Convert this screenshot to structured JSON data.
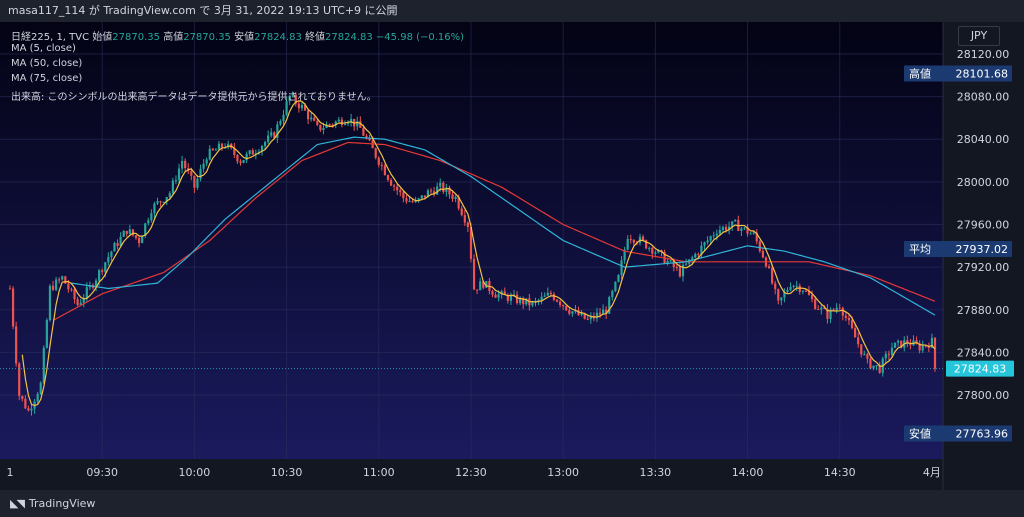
{
  "header": {
    "title": "masa117_114 が TradingView.com で 3月 31, 2022 19:13 UTC+9 に公開"
  },
  "legend": {
    "symbol": "日経225, 1, TVC",
    "open_label": "始値",
    "open": "27870.35",
    "high_label": "高値",
    "high": "27870.35",
    "low_label": "安値",
    "low": "27824.83",
    "close_label": "終値",
    "close": "27824.83",
    "change": "−45.98 (−0.16%)",
    "ma5": "MA (5, close)",
    "ma50": "MA (50, close)",
    "ma75": "MA (75, close)",
    "volume_note": "出来高: このシンボルの出来高データはデータ提供元から提供されておりません。"
  },
  "currency": "JPY",
  "footer": {
    "brand": "TradingView"
  },
  "colors": {
    "up": "#26a69a",
    "down": "#ef5350",
    "ma5": "#f5c242",
    "ma50": "#2fb5d8",
    "ma75": "#e53935",
    "label_box": "#1c3a72",
    "last_price": "#26c6da",
    "bg_top": "#030314",
    "bg_bottom": "#1a1a5e"
  },
  "chart_data": {
    "type": "candlestick",
    "ylim": [
      27740,
      28150
    ],
    "y_ticks": [
      "28120.00",
      "28080.00",
      "28040.00",
      "28000.00",
      "27960.00",
      "27920.00",
      "27880.00",
      "27840.00",
      "27800.00"
    ],
    "x_ticks": [
      {
        "label": "1",
        "t": 0
      },
      {
        "label": "09:30",
        "t": 30
      },
      {
        "label": "10:00",
        "t": 60
      },
      {
        "label": "10:30",
        "t": 90
      },
      {
        "label": "11:00",
        "t": 120
      },
      {
        "label": "12:30",
        "t": 150
      },
      {
        "label": "13:00",
        "t": 180
      },
      {
        "label": "13:30",
        "t": 210
      },
      {
        "label": "14:00",
        "t": 240
      },
      {
        "label": "14:30",
        "t": 270
      },
      {
        "label": "4月",
        "t": 300
      }
    ],
    "price_labels": [
      {
        "name": "高値",
        "value": "28101.68",
        "kind": "high"
      },
      {
        "name": "平均",
        "value": "27937.02",
        "kind": "avg"
      },
      {
        "name": "",
        "value": "27824.83",
        "kind": "last"
      },
      {
        "name": "安値",
        "value": "27763.96",
        "kind": "low"
      }
    ],
    "key_points": [
      {
        "t": 0,
        "p": 27900
      },
      {
        "t": 3,
        "p": 27800
      },
      {
        "t": 6,
        "p": 27785
      },
      {
        "t": 10,
        "p": 27810
      },
      {
        "t": 13,
        "p": 27900
      },
      {
        "t": 17,
        "p": 27910
      },
      {
        "t": 22,
        "p": 27885
      },
      {
        "t": 27,
        "p": 27905
      },
      {
        "t": 33,
        "p": 27935
      },
      {
        "t": 38,
        "p": 27955
      },
      {
        "t": 42,
        "p": 27945
      },
      {
        "t": 46,
        "p": 27975
      },
      {
        "t": 52,
        "p": 27990
      },
      {
        "t": 56,
        "p": 28020
      },
      {
        "t": 60,
        "p": 27995
      },
      {
        "t": 64,
        "p": 28025
      },
      {
        "t": 70,
        "p": 28035
      },
      {
        "t": 75,
        "p": 28020
      },
      {
        "t": 80,
        "p": 28030
      },
      {
        "t": 86,
        "p": 28045
      },
      {
        "t": 91,
        "p": 28080
      },
      {
        "t": 95,
        "p": 28070
      },
      {
        "t": 100,
        "p": 28050
      },
      {
        "t": 105,
        "p": 28055
      },
      {
        "t": 110,
        "p": 28060
      },
      {
        "t": 114,
        "p": 28050
      },
      {
        "t": 118,
        "p": 28030
      },
      {
        "t": 124,
        "p": 28000
      },
      {
        "t": 128,
        "p": 27985
      },
      {
        "t": 132,
        "p": 27980
      },
      {
        "t": 136,
        "p": 27990
      },
      {
        "t": 140,
        "p": 27995
      },
      {
        "t": 145,
        "p": 27985
      },
      {
        "t": 149,
        "p": 27960
      },
      {
        "t": 151,
        "p": 27900
      },
      {
        "t": 154,
        "p": 27905
      },
      {
        "t": 158,
        "p": 27895
      },
      {
        "t": 164,
        "p": 27890
      },
      {
        "t": 170,
        "p": 27885
      },
      {
        "t": 176,
        "p": 27895
      },
      {
        "t": 182,
        "p": 27880
      },
      {
        "t": 188,
        "p": 27870
      },
      {
        "t": 194,
        "p": 27880
      },
      {
        "t": 198,
        "p": 27910
      },
      {
        "t": 201,
        "p": 27950
      },
      {
        "t": 205,
        "p": 27945
      },
      {
        "t": 210,
        "p": 27935
      },
      {
        "t": 214,
        "p": 27925
      },
      {
        "t": 218,
        "p": 27915
      },
      {
        "t": 224,
        "p": 27935
      },
      {
        "t": 230,
        "p": 27955
      },
      {
        "t": 236,
        "p": 27960
      },
      {
        "t": 242,
        "p": 27950
      },
      {
        "t": 246,
        "p": 27925
      },
      {
        "t": 250,
        "p": 27885
      },
      {
        "t": 254,
        "p": 27905
      },
      {
        "t": 258,
        "p": 27900
      },
      {
        "t": 262,
        "p": 27885
      },
      {
        "t": 266,
        "p": 27875
      },
      {
        "t": 270,
        "p": 27885
      },
      {
        "t": 274,
        "p": 27860
      },
      {
        "t": 279,
        "p": 27830
      },
      {
        "t": 283,
        "p": 27825
      },
      {
        "t": 287,
        "p": 27845
      },
      {
        "t": 292,
        "p": 27850
      },
      {
        "t": 296,
        "p": 27845
      },
      {
        "t": 300,
        "p": 27850
      },
      {
        "t": 301,
        "p": 27825
      }
    ],
    "ma50_points": [
      {
        "t": 20,
        "p": 27905
      },
      {
        "t": 32,
        "p": 27900
      },
      {
        "t": 48,
        "p": 27905
      },
      {
        "t": 58,
        "p": 27930
      },
      {
        "t": 70,
        "p": 27965
      },
      {
        "t": 85,
        "p": 28000
      },
      {
        "t": 100,
        "p": 28035
      },
      {
        "t": 112,
        "p": 28042
      },
      {
        "t": 122,
        "p": 28040
      },
      {
        "t": 135,
        "p": 28030
      },
      {
        "t": 150,
        "p": 28005
      },
      {
        "t": 165,
        "p": 27975
      },
      {
        "t": 180,
        "p": 27945
      },
      {
        "t": 200,
        "p": 27920
      },
      {
        "t": 220,
        "p": 27925
      },
      {
        "t": 240,
        "p": 27940
      },
      {
        "t": 252,
        "p": 27935
      },
      {
        "t": 265,
        "p": 27925
      },
      {
        "t": 280,
        "p": 27910
      },
      {
        "t": 301,
        "p": 27875
      }
    ],
    "ma75_points": [
      {
        "t": 14,
        "p": 27870
      },
      {
        "t": 30,
        "p": 27895
      },
      {
        "t": 50,
        "p": 27915
      },
      {
        "t": 65,
        "p": 27945
      },
      {
        "t": 80,
        "p": 27985
      },
      {
        "t": 95,
        "p": 28020
      },
      {
        "t": 110,
        "p": 28037
      },
      {
        "t": 122,
        "p": 28035
      },
      {
        "t": 140,
        "p": 28020
      },
      {
        "t": 160,
        "p": 27995
      },
      {
        "t": 180,
        "p": 27960
      },
      {
        "t": 200,
        "p": 27935
      },
      {
        "t": 220,
        "p": 27925
      },
      {
        "t": 240,
        "p": 27925
      },
      {
        "t": 260,
        "p": 27925
      },
      {
        "t": 280,
        "p": 27912
      },
      {
        "t": 301,
        "p": 27888
      }
    ]
  }
}
